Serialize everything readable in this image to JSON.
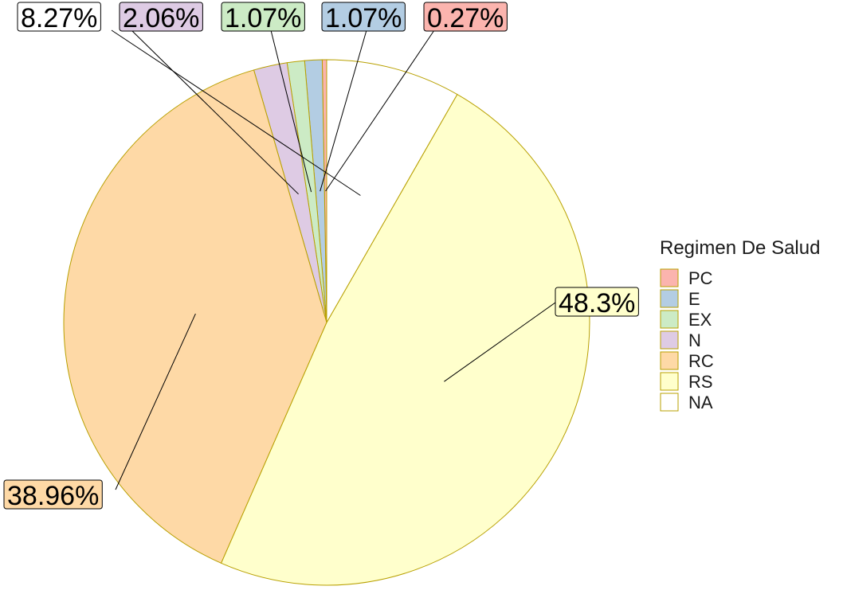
{
  "chart_data": {
    "type": "pie",
    "legend_title": "Regimen De Salud",
    "legend_position": "right",
    "slices": [
      {
        "category": "PC",
        "value": 0.27,
        "label": "0.27%",
        "color": "#FBB4AE"
      },
      {
        "category": "E",
        "value": 1.07,
        "label": "1.07%",
        "color": "#B3CDE3"
      },
      {
        "category": "EX",
        "value": 1.07,
        "label": "1.07%",
        "color": "#CCEBC5"
      },
      {
        "category": "N",
        "value": 2.06,
        "label": "2.06%",
        "color": "#DECBE4"
      },
      {
        "category": "RC",
        "value": 38.96,
        "label": "38.96%",
        "color": "#FED9A6"
      },
      {
        "category": "RS",
        "value": 48.3,
        "label": "48.3%",
        "color": "#FFFFCC"
      },
      {
        "category": "NA",
        "value": 8.27,
        "label": "8.27%",
        "color": "#FFFFFF"
      }
    ],
    "slice_border_color": "#B8A000"
  }
}
